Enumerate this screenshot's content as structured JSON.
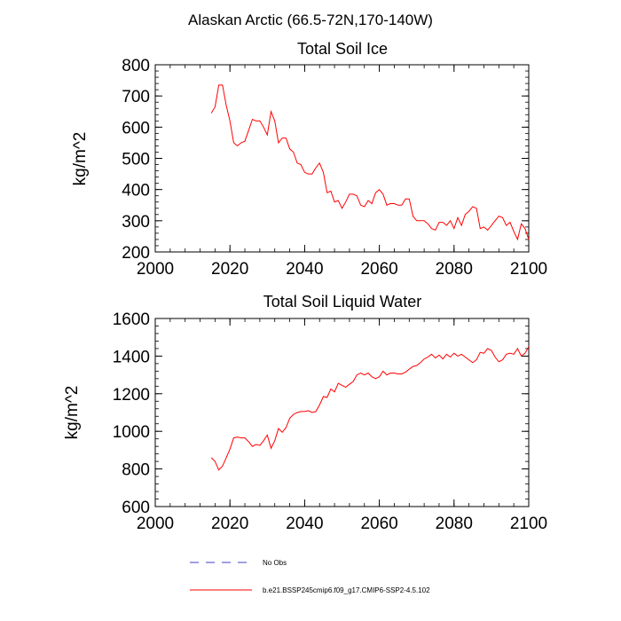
{
  "figure_title": "Alaskan Arctic (66.5-72N,170-140W)",
  "legend": [
    {
      "label": "No Obs",
      "color": "#4040c0",
      "style": "dashed"
    },
    {
      "label": "b.e21.BSSP245cmip6.f09_g17.CMIP6-SSP2-4.5.102",
      "color": "#ff0000",
      "style": "solid"
    }
  ],
  "chart_data": [
    {
      "type": "line",
      "title": "Total Soil Ice",
      "xlabel": "",
      "ylabel": "kg/m^2",
      "xlim": [
        2000,
        2100
      ],
      "ylim": [
        200,
        800
      ],
      "xticks": [
        "2000",
        "2020",
        "2040",
        "2060",
        "2080",
        "2100"
      ],
      "yticks": [
        "200",
        "300",
        "400",
        "500",
        "600",
        "700",
        "800"
      ],
      "series": [
        {
          "color": "#ff0000",
          "x": [
            2015,
            2016,
            2017,
            2018,
            2019,
            2020,
            2021,
            2022,
            2023,
            2024,
            2025,
            2026,
            2027,
            2028,
            2029,
            2030,
            2031,
            2032,
            2033,
            2034,
            2035,
            2036,
            2037,
            2038,
            2039,
            2040,
            2041,
            2042,
            2043,
            2044,
            2045,
            2046,
            2047,
            2048,
            2049,
            2050,
            2051,
            2052,
            2053,
            2054,
            2055,
            2056,
            2057,
            2058,
            2059,
            2060,
            2061,
            2062,
            2063,
            2064,
            2065,
            2066,
            2067,
            2068,
            2069,
            2070,
            2071,
            2072,
            2073,
            2074,
            2075,
            2076,
            2077,
            2078,
            2079,
            2080,
            2081,
            2082,
            2083,
            2084,
            2085,
            2086,
            2087,
            2088,
            2089,
            2090,
            2091,
            2092,
            2093,
            2094,
            2095,
            2096,
            2097,
            2098,
            2099,
            2100
          ],
          "values": [
            645,
            665,
            735,
            735,
            670,
            620,
            550,
            540,
            550,
            555,
            590,
            625,
            620,
            620,
            600,
            575,
            650,
            620,
            550,
            565,
            565,
            530,
            520,
            485,
            480,
            455,
            450,
            450,
            470,
            485,
            455,
            390,
            395,
            360,
            365,
            340,
            360,
            385,
            385,
            380,
            350,
            345,
            365,
            355,
            390,
            400,
            385,
            350,
            355,
            355,
            350,
            350,
            370,
            370,
            315,
            300,
            300,
            300,
            290,
            275,
            270,
            295,
            295,
            285,
            300,
            275,
            310,
            285,
            320,
            330,
            345,
            340,
            275,
            280,
            270,
            285,
            300,
            315,
            310,
            285,
            295,
            265,
            240,
            290,
            275,
            240
          ]
        }
      ]
    },
    {
      "type": "line",
      "title": "Total Soil Liquid Water",
      "xlabel": "",
      "ylabel": "kg/m^2",
      "xlim": [
        2000,
        2100
      ],
      "ylim": [
        600,
        1600
      ],
      "xticks": [
        "2000",
        "2020",
        "2040",
        "2060",
        "2080",
        "2100"
      ],
      "yticks": [
        "600",
        "800",
        "1000",
        "1200",
        "1400",
        "1600"
      ],
      "series": [
        {
          "color": "#ff0000",
          "x": [
            2015,
            2016,
            2017,
            2018,
            2019,
            2020,
            2021,
            2022,
            2023,
            2024,
            2025,
            2026,
            2027,
            2028,
            2029,
            2030,
            2031,
            2032,
            2033,
            2034,
            2035,
            2036,
            2037,
            2038,
            2039,
            2040,
            2041,
            2042,
            2043,
            2044,
            2045,
            2046,
            2047,
            2048,
            2049,
            2050,
            2051,
            2052,
            2053,
            2054,
            2055,
            2056,
            2057,
            2058,
            2059,
            2060,
            2061,
            2062,
            2063,
            2064,
            2065,
            2066,
            2067,
            2068,
            2069,
            2070,
            2071,
            2072,
            2073,
            2074,
            2075,
            2076,
            2077,
            2078,
            2079,
            2080,
            2081,
            2082,
            2083,
            2084,
            2085,
            2086,
            2087,
            2088,
            2089,
            2090,
            2091,
            2092,
            2093,
            2094,
            2095,
            2096,
            2097,
            2098,
            2099,
            2100
          ],
          "values": [
            860,
            840,
            795,
            815,
            860,
            905,
            965,
            970,
            965,
            965,
            945,
            920,
            930,
            925,
            950,
            980,
            910,
            950,
            1015,
            995,
            1020,
            1070,
            1090,
            1100,
            1105,
            1105,
            1110,
            1100,
            1105,
            1140,
            1185,
            1180,
            1225,
            1210,
            1255,
            1245,
            1235,
            1250,
            1265,
            1300,
            1310,
            1300,
            1310,
            1290,
            1280,
            1290,
            1320,
            1300,
            1310,
            1310,
            1305,
            1305,
            1315,
            1330,
            1345,
            1350,
            1365,
            1385,
            1395,
            1410,
            1390,
            1405,
            1385,
            1410,
            1395,
            1415,
            1400,
            1410,
            1395,
            1380,
            1365,
            1380,
            1420,
            1415,
            1440,
            1430,
            1395,
            1370,
            1380,
            1410,
            1415,
            1410,
            1440,
            1400,
            1415,
            1450
          ]
        }
      ]
    }
  ]
}
